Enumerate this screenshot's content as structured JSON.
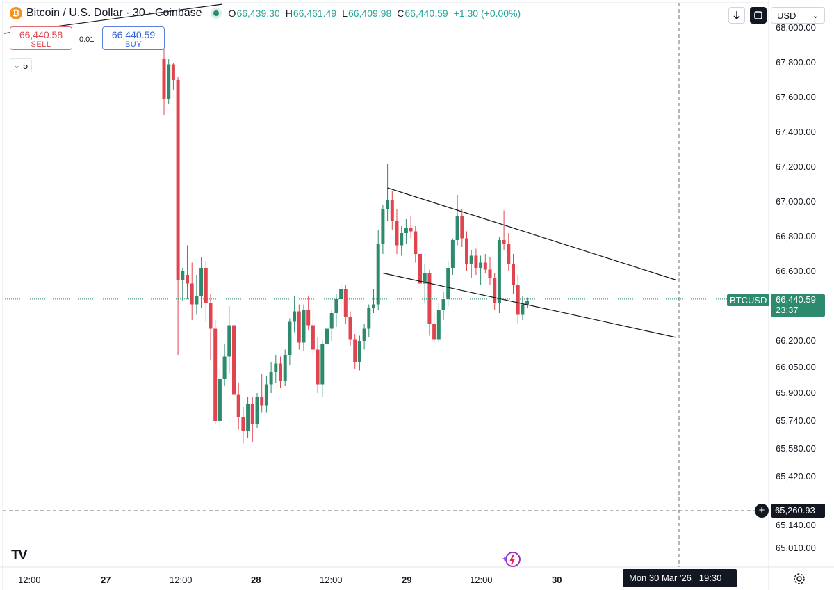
{
  "header": {
    "coin_symbol": "₿",
    "title": "Bitcoin / U.S. Dollar · 30 · Coinbase",
    "open_label": "O",
    "open": "66,439.30",
    "high_label": "H",
    "high": "66,461.49",
    "low_label": "L",
    "low": "66,409.98",
    "close_label": "C",
    "close": "66,440.59",
    "change": "+1.30 (+0.00%)"
  },
  "trade": {
    "sell_price": "66,440.58",
    "sell_label": "SELL",
    "spread": "0.01",
    "buy_price": "66,440.59",
    "buy_label": "BUY"
  },
  "indicators_collapsed": {
    "arrow": "⌄",
    "count": "5"
  },
  "toolbar": {
    "download_icon": "arrow-down-icon",
    "fullscreen_icon": "square-icon",
    "currency": "USD",
    "currency_arrow": "⌄"
  },
  "price_tag": {
    "symbol": "BTCUSD",
    "price": "66,440.59",
    "countdown": "23:37"
  },
  "crosshair": {
    "price": "65,260.93",
    "date": "Mon 30 Mar '26",
    "time": "19:30"
  },
  "brand": {
    "logo": "TV"
  },
  "colors": {
    "up": "#2d8a6e",
    "down": "#e0454f",
    "accent": "#2f62d7"
  },
  "chart_data": {
    "type": "candlestick",
    "symbol": "BTCUSD",
    "interval": "30",
    "exchange": "Coinbase",
    "y_ticks": [
      68000,
      67800,
      67600,
      67400,
      67200,
      67000,
      66800,
      66600,
      66200,
      66050,
      65900,
      65740,
      65580,
      65420,
      65140,
      65010
    ],
    "y_tick_labels": [
      "68,000.00",
      "67,800.00",
      "67,600.00",
      "67,400.00",
      "67,200.00",
      "67,000.00",
      "66,800.00",
      "66,600.00",
      "66,200.00",
      "66,050.00",
      "65,900.00",
      "65,740.00",
      "65,580.00",
      "65,420.00",
      "65,140.00",
      "65,010.00"
    ],
    "x_tick_labels": [
      "12:00",
      "27",
      "12:00",
      "28",
      "12:00",
      "29",
      "12:00",
      "30"
    ],
    "ylim": [
      64950,
      68010
    ],
    "grid": false,
    "last_price": 66440.59,
    "ohlc": [
      [
        67820,
        67880,
        67500,
        67590
      ],
      [
        67590,
        67820,
        67560,
        67790
      ],
      [
        67790,
        67800,
        67640,
        67700
      ],
      [
        67700,
        67720,
        66120,
        66550
      ],
      [
        66550,
        66620,
        66430,
        66600
      ],
      [
        66580,
        66750,
        66440,
        66530
      ],
      [
        66530,
        66650,
        66320,
        66410
      ],
      [
        66410,
        66580,
        66350,
        66460
      ],
      [
        66460,
        66680,
        66390,
        66620
      ],
      [
        66620,
        66660,
        66310,
        66420
      ],
      [
        66420,
        66470,
        66090,
        66270
      ],
      [
        66270,
        66320,
        65720,
        65740
      ],
      [
        65740,
        66020,
        65700,
        65980
      ],
      [
        65980,
        66180,
        65940,
        66110
      ],
      [
        66110,
        66400,
        66010,
        66290
      ],
      [
        66290,
        66360,
        65840,
        65890
      ],
      [
        65890,
        65960,
        65690,
        65760
      ],
      [
        65760,
        65820,
        65610,
        65680
      ],
      [
        65680,
        65880,
        65640,
        65840
      ],
      [
        65840,
        65880,
        65620,
        65720
      ],
      [
        65720,
        65900,
        65700,
        65880
      ],
      [
        65880,
        66010,
        65790,
        65830
      ],
      [
        65830,
        66000,
        65790,
        65950
      ],
      [
        65950,
        66080,
        65900,
        66020
      ],
      [
        66020,
        66120,
        65960,
        66070
      ],
      [
        66070,
        66110,
        65930,
        65970
      ],
      [
        65970,
        66150,
        65940,
        66120
      ],
      [
        66120,
        66330,
        66060,
        66310
      ],
      [
        66310,
        66460,
        66250,
        66370
      ],
      [
        66370,
        66410,
        66150,
        66190
      ],
      [
        66190,
        66410,
        66140,
        66380
      ],
      [
        66380,
        66460,
        66260,
        66290
      ],
      [
        66290,
        66320,
        66120,
        66150
      ],
      [
        66150,
        66220,
        65900,
        65950
      ],
      [
        65950,
        66210,
        65880,
        66180
      ],
      [
        66180,
        66290,
        66100,
        66270
      ],
      [
        66270,
        66380,
        66200,
        66360
      ],
      [
        66360,
        66470,
        66280,
        66440
      ],
      [
        66440,
        66530,
        66370,
        66500
      ],
      [
        66500,
        66520,
        66300,
        66340
      ],
      [
        66340,
        66370,
        66170,
        66210
      ],
      [
        66210,
        66240,
        66040,
        66080
      ],
      [
        66080,
        66230,
        66030,
        66200
      ],
      [
        66200,
        66300,
        66150,
        66270
      ],
      [
        66270,
        66410,
        66220,
        66390
      ],
      [
        66390,
        66500,
        66360,
        66410
      ],
      [
        66410,
        66840,
        66380,
        66760
      ],
      [
        66760,
        66980,
        66700,
        66960
      ],
      [
        66960,
        67220,
        66890,
        67010
      ],
      [
        67010,
        67060,
        66840,
        66890
      ],
      [
        66890,
        66960,
        66700,
        66750
      ],
      [
        66750,
        66860,
        66690,
        66820
      ],
      [
        66820,
        66900,
        66760,
        66850
      ],
      [
        66850,
        66920,
        66790,
        66830
      ],
      [
        66830,
        66860,
        66650,
        66700
      ],
      [
        66700,
        66760,
        66490,
        66530
      ],
      [
        66530,
        66640,
        66420,
        66590
      ],
      [
        66590,
        66610,
        66230,
        66300
      ],
      [
        66300,
        66360,
        66180,
        66210
      ],
      [
        66210,
        66420,
        66190,
        66380
      ],
      [
        66380,
        66480,
        66320,
        66440
      ],
      [
        66440,
        66660,
        66400,
        66620
      ],
      [
        66620,
        66790,
        66580,
        66780
      ],
      [
        66780,
        67040,
        66750,
        66920
      ],
      [
        66920,
        66960,
        66740,
        66790
      ],
      [
        66790,
        66830,
        66600,
        66640
      ],
      [
        66640,
        66720,
        66560,
        66690
      ],
      [
        66690,
        66730,
        66580,
        66620
      ],
      [
        66620,
        66690,
        66520,
        66650
      ],
      [
        66650,
        66700,
        66590,
        66610
      ],
      [
        66610,
        66680,
        66520,
        66560
      ],
      [
        66560,
        66590,
        66380,
        66420
      ],
      [
        66420,
        66800,
        66360,
        66780
      ],
      [
        66780,
        66950,
        66720,
        66760
      ],
      [
        66760,
        66820,
        66600,
        66640
      ],
      [
        66640,
        66700,
        66470,
        66520
      ],
      [
        66520,
        66580,
        66300,
        66350
      ],
      [
        66350,
        66460,
        66320,
        66410
      ],
      [
        66410,
        66450,
        66390,
        66430
      ]
    ],
    "trendlines": [
      {
        "name": "upper-channel",
        "from": [
          48,
          67080
        ],
        "to": [
          110,
          66550
        ]
      },
      {
        "name": "lower-channel",
        "from": [
          47,
          66590
        ],
        "to": [
          110,
          66220
        ]
      }
    ]
  }
}
